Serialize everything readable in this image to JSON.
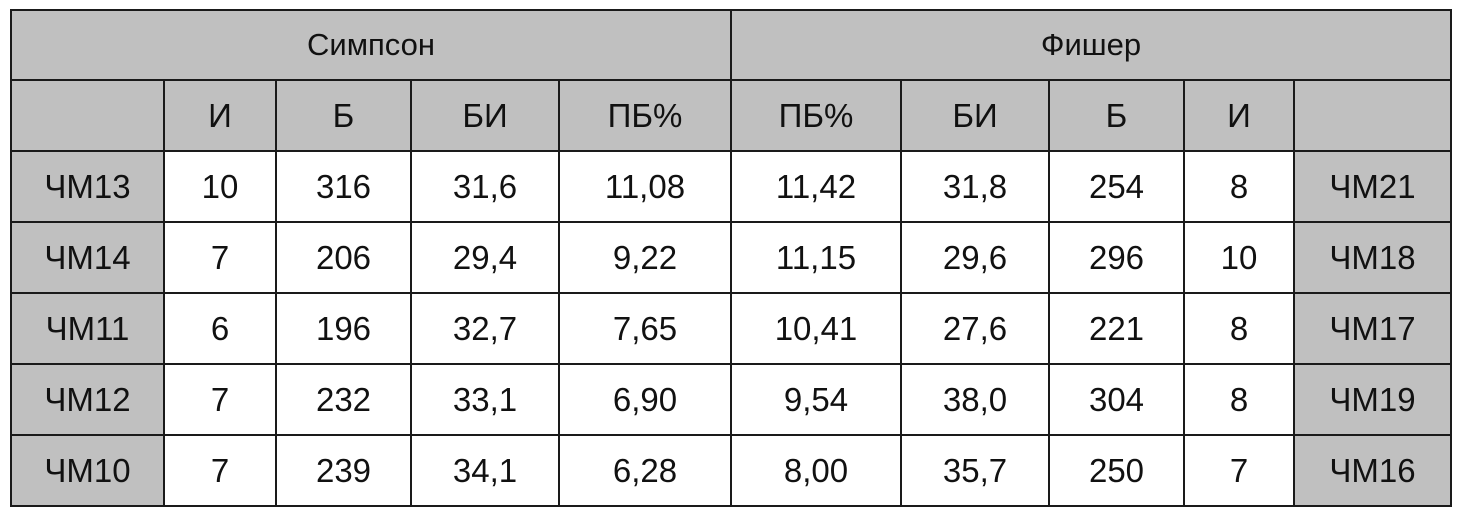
{
  "table": {
    "groups": [
      "Симпсон",
      "Фишер"
    ],
    "header": [
      "И",
      "Б",
      "БИ",
      "ПБ%",
      "ПБ%",
      "БИ",
      "Б",
      "И"
    ],
    "rows": [
      [
        "ЧМ13",
        "10",
        "316",
        "31,6",
        "11,08",
        "11,42",
        "31,8",
        "254",
        "8",
        "ЧМ21"
      ],
      [
        "ЧМ14",
        "7",
        "206",
        "29,4",
        "9,22",
        "11,15",
        "29,6",
        "296",
        "10",
        "ЧМ18"
      ],
      [
        "ЧМ11",
        "6",
        "196",
        "32,7",
        "7,65",
        "10,41",
        "27,6",
        "221",
        "8",
        "ЧМ17"
      ],
      [
        "ЧМ12",
        "7",
        "232",
        "33,1",
        "6,90",
        "9,54",
        "38,0",
        "304",
        "8",
        "ЧМ19"
      ],
      [
        "ЧМ10",
        "7",
        "239",
        "34,1",
        "6,28",
        "8,00",
        "35,7",
        "250",
        "7",
        "ЧМ16"
      ]
    ]
  }
}
